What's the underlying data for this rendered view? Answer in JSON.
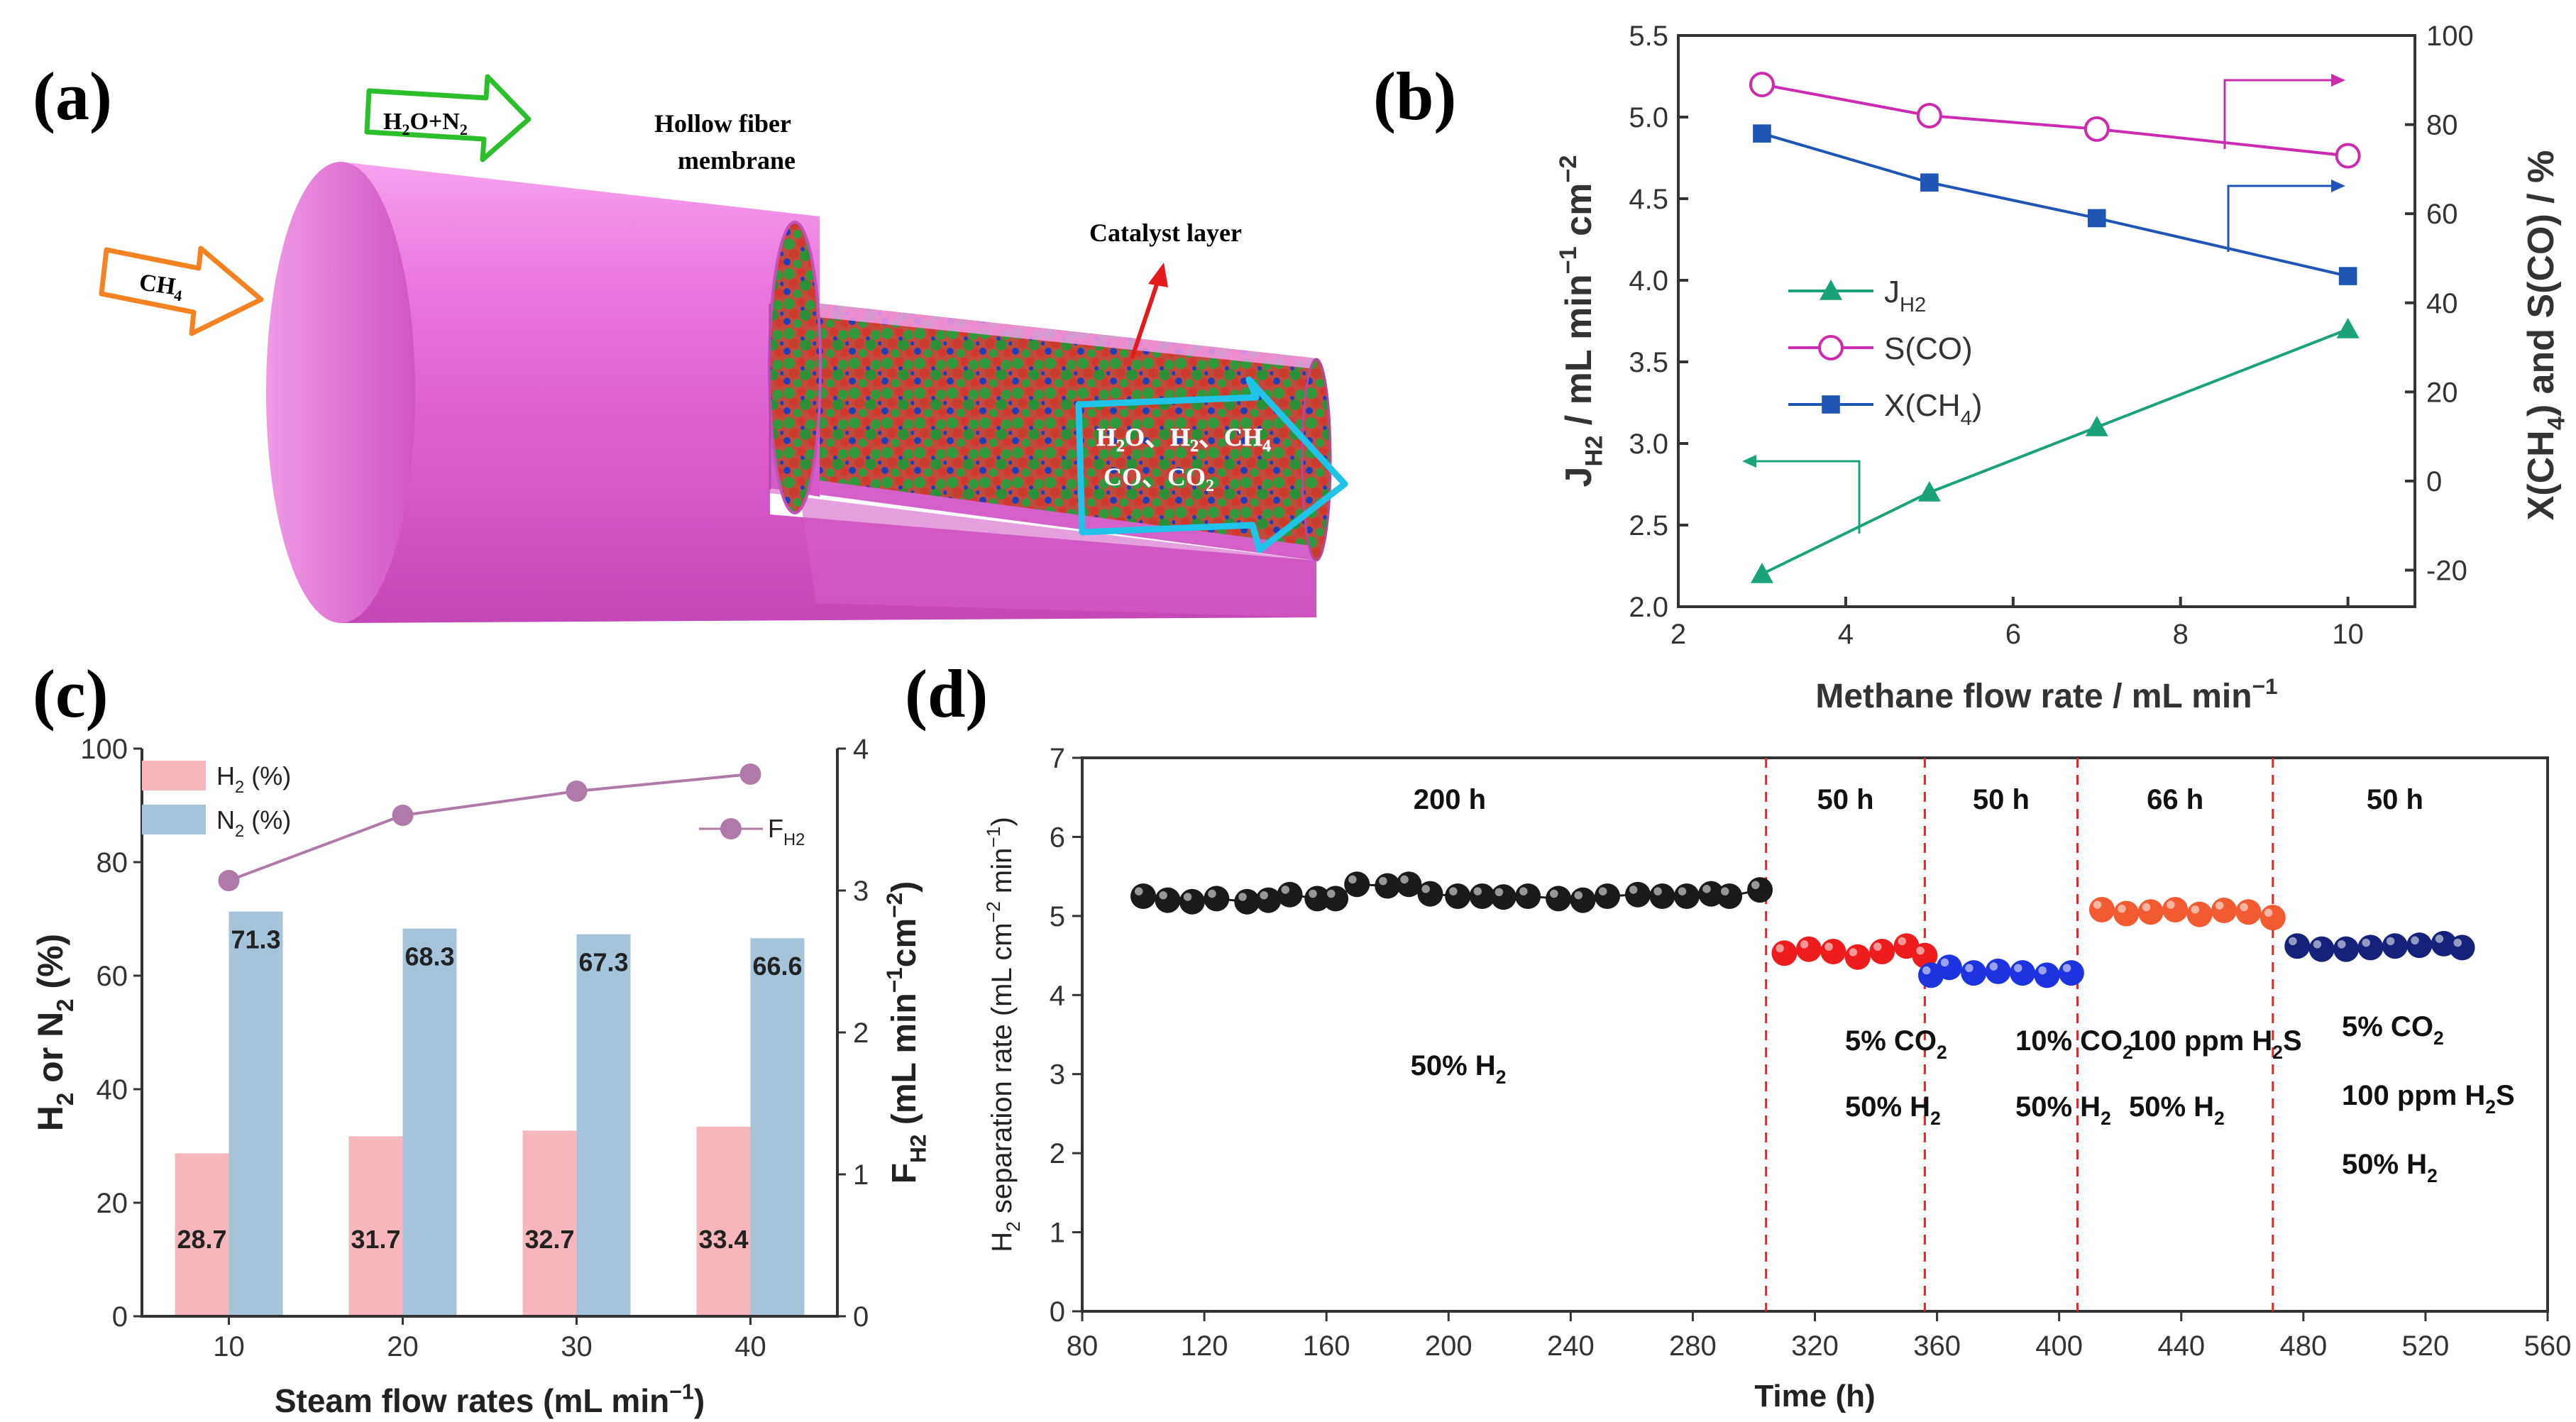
{
  "panels": {
    "a": {
      "label": "(a)",
      "feed_ch4": "CH",
      "feed_ch4_sub": "4",
      "feed_sweep_a": "H",
      "feed_sweep_a_sub": "2",
      "feed_sweep_b": "O+N",
      "feed_sweep_b_sub": "2",
      "hollow_line1": "Hollow fiber",
      "hollow_line2": "membrane",
      "catalyst": "Catalyst layer",
      "products_line1": "H",
      "products_line1_sub": "2",
      "products_line1_rest": "O、H",
      "products_line1_sub2": "2",
      "products_line1_rest2": "、CH",
      "products_line1_sub3": "4",
      "products_line2": "CO、CO",
      "products_line2_sub": "2"
    },
    "b": {
      "label": "(b)"
    },
    "c": {
      "label": "(c)"
    },
    "d": {
      "label": "(d)"
    }
  },
  "chart_data": [
    {
      "id": "b",
      "type": "line",
      "xlabel": "Methane flow rate / mL min",
      "xlabel_sup": "−1",
      "ylabel_left": "J",
      "ylabel_left_sub": "H2",
      "ylabel_left_rest": " / mL min",
      "ylabel_left_sup": "−1",
      "ylabel_left_rest2": " cm",
      "ylabel_left_sup2": "−2",
      "ylabel_right": "X(CH",
      "ylabel_right_sub": "4",
      "ylabel_right_rest": ") and S(CO) / %",
      "xlim": [
        2,
        10.8
      ],
      "x_ticks": [
        2,
        4,
        6,
        8,
        10
      ],
      "ylim_left": [
        2.0,
        5.5
      ],
      "y_ticks_left": [
        2.0,
        2.5,
        3.0,
        3.5,
        4.0,
        4.5,
        5.0,
        5.5
      ],
      "ylim_right": [
        -28.2,
        100
      ],
      "y_ticks_right": [
        -20,
        0,
        20,
        40,
        60,
        80,
        100
      ],
      "x": [
        3,
        5,
        7,
        10
      ],
      "series": [
        {
          "name": "J",
          "name_sub": "H2",
          "axis": "left",
          "values": [
            2.2,
            2.7,
            3.1,
            3.7
          ],
          "color": "#1aa37a",
          "marker": "triangle"
        },
        {
          "name": "S(CO)",
          "axis": "right",
          "values": [
            89,
            82,
            79,
            73
          ],
          "color": "#cc2bb0",
          "marker": "open-circle"
        },
        {
          "name": "X(CH",
          "name_sub": "4",
          "name_rest": ")",
          "axis": "right",
          "values": [
            78,
            67,
            59,
            46
          ],
          "color": "#1f56b5",
          "marker": "square"
        }
      ]
    },
    {
      "id": "c",
      "type": "bar",
      "categories": [
        "10",
        "20",
        "30",
        "40"
      ],
      "series": [
        {
          "name": "H",
          "name_sub": "2",
          "name_rest": " (%)",
          "axis": "left",
          "values": [
            28.7,
            31.7,
            32.7,
            33.4
          ],
          "labels": [
            "28.7",
            "31.7",
            "32.7",
            "33.4"
          ],
          "color": "#f6b6bb"
        },
        {
          "name": "N",
          "name_sub": "2",
          "name_rest": " (%)",
          "axis": "left",
          "values": [
            71.3,
            68.3,
            67.3,
            66.6
          ],
          "labels": [
            "71.3",
            "68.3",
            "67.3",
            "66.6"
          ],
          "color": "#a6c4d9"
        },
        {
          "name": "F",
          "name_sub": "H2",
          "axis": "right",
          "type": "line",
          "values": [
            3.07,
            3.53,
            3.7,
            3.82
          ],
          "color": "#b07aa8"
        }
      ],
      "xlabel": "Steam flow rates  (mL min",
      "xlabel_sup": "−1",
      "xlabel_end": ")",
      "ylabel_left": "H",
      "ylabel_left_sub": "2",
      "ylabel_left_rest": " or N",
      "ylabel_left_sub2": "2",
      "ylabel_left_rest2": " (%)",
      "ylabel_right": "F",
      "ylabel_right_sub": "H2",
      "ylabel_right_rest": " (mL min",
      "ylabel_right_sup": "−1",
      "ylabel_right_rest2": "cm",
      "ylabel_right_sup2": "−2",
      "ylabel_right_end": ")",
      "ylim_left": [
        0,
        100
      ],
      "y_ticks_left": [
        0,
        20,
        40,
        60,
        80,
        100
      ],
      "ylim_right": [
        0,
        4
      ],
      "y_ticks_right": [
        0,
        1,
        2,
        3,
        4
      ]
    },
    {
      "id": "d",
      "type": "scatter",
      "xlabel": "Time (h)",
      "ylabel": "H",
      "ylabel_sub": "2",
      "ylabel_rest": " separation rate (mL cm",
      "ylabel_sup": "−2",
      "ylabel_rest2": " min",
      "ylabel_sup2": "−1",
      "ylabel_end": ")",
      "xlim": [
        80,
        560
      ],
      "x_ticks": [
        80,
        120,
        160,
        200,
        240,
        280,
        320,
        360,
        400,
        440,
        480,
        520,
        560
      ],
      "ylim": [
        0,
        7
      ],
      "y_ticks": [
        0,
        1,
        2,
        3,
        4,
        5,
        6,
        7
      ],
      "dividers": [
        304,
        356,
        406,
        470
      ],
      "segments": [
        {
          "duration": "200 h",
          "color": "#1a1a1a",
          "conditions": [
            {
              "t": "50% H",
              "s": "2",
              "r": ""
            }
          ],
          "x": [
            100,
            108,
            116,
            124,
            134,
            141,
            148,
            157,
            163,
            170,
            180,
            187,
            194,
            203,
            211,
            218,
            226,
            236,
            244,
            252,
            262,
            270,
            278,
            286,
            292,
            302
          ],
          "y": [
            5.25,
            5.2,
            5.18,
            5.22,
            5.18,
            5.2,
            5.27,
            5.22,
            5.22,
            5.4,
            5.38,
            5.4,
            5.28,
            5.25,
            5.25,
            5.24,
            5.25,
            5.22,
            5.2,
            5.25,
            5.27,
            5.25,
            5.25,
            5.28,
            5.25,
            5.33
          ]
        },
        {
          "duration": "50 h",
          "color": "#ee1c1c",
          "conditions": [
            {
              "t": "5% CO",
              "s": "2",
              "r": ""
            },
            {
              "t": "50% H",
              "s": "2",
              "r": ""
            }
          ],
          "x": [
            310,
            318,
            326,
            334,
            342,
            350,
            356
          ],
          "y": [
            4.53,
            4.58,
            4.55,
            4.48,
            4.55,
            4.62,
            4.5
          ]
        },
        {
          "duration": "50 h",
          "color": "#1e33e0",
          "conditions": [
            {
              "t": "10% CO",
              "s": "2",
              "r": ""
            },
            {
              "t": "50% H",
              "s": "2",
              "r": ""
            }
          ],
          "x": [
            358,
            364,
            372,
            380,
            388,
            396,
            404
          ],
          "y": [
            4.25,
            4.35,
            4.28,
            4.3,
            4.28,
            4.25,
            4.28
          ]
        },
        {
          "duration": "66 h",
          "color": "#f25b32",
          "conditions": [
            {
              "t": "100 ppm H",
              "s": "2",
              "r": "S"
            },
            {
              "t": "50% H",
              "s": "2",
              "r": ""
            }
          ],
          "x": [
            414,
            422,
            430,
            438,
            446,
            454,
            462,
            470
          ],
          "y": [
            5.08,
            5.03,
            5.05,
            5.08,
            5.02,
            5.07,
            5.05,
            4.98
          ]
        },
        {
          "duration": "50 h",
          "color": "#16217a",
          "conditions": [
            {
              "t": "5% CO",
              "s": "2",
              "r": ""
            },
            {
              "t": "100 ppm H",
              "s": "2",
              "r": "S"
            },
            {
              "t": "50% H",
              "s": "2",
              "r": ""
            }
          ],
          "x": [
            478,
            486,
            494,
            502,
            510,
            518,
            526,
            532
          ],
          "y": [
            4.62,
            4.58,
            4.58,
            4.6,
            4.62,
            4.63,
            4.65,
            4.6
          ]
        }
      ]
    }
  ]
}
